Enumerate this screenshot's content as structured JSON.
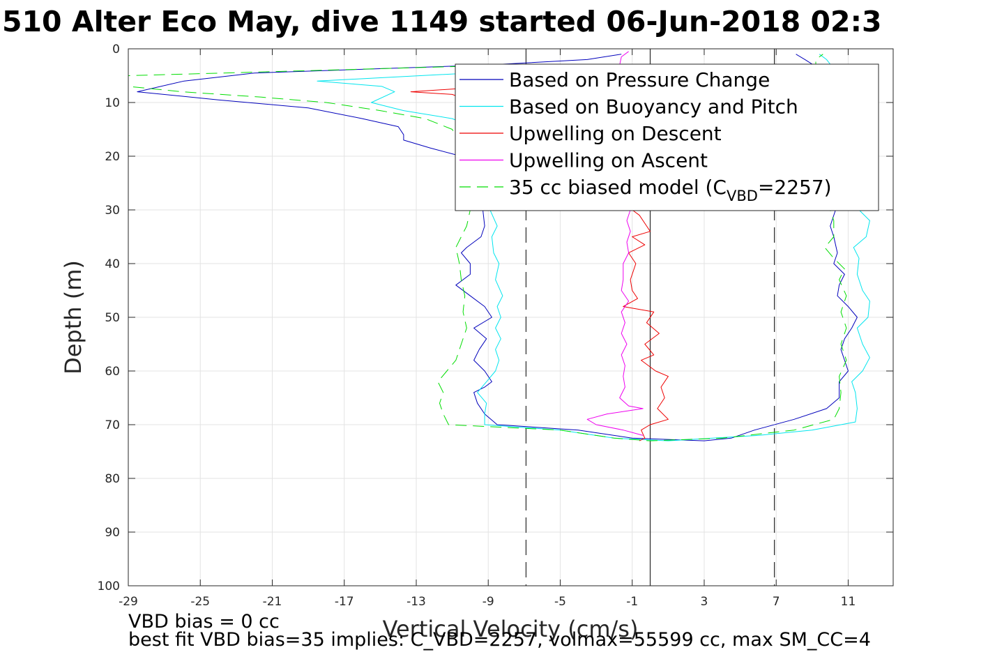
{
  "title": "510 Alter Eco May, dive 1149 started 06-Jun-2018 02:3",
  "notes": {
    "line1": "VBD bias = 0 cc",
    "line2": "best fit VBD bias=35 implies: C_VBD=2257, volmax=55599 cc, max SM_CC=4"
  },
  "colors": {
    "pressure": "#0000bb",
    "buoyancy": "#00e5ee",
    "descent": "#ee0000",
    "ascent": "#ee00ee",
    "model": "#00dd00",
    "grid": "#e3e3e3",
    "axis": "#262626"
  },
  "chart_data": {
    "type": "line",
    "title": "510 Alter Eco May, dive 1149 started 06-Jun-2018 02:3",
    "xlabel": "Vertical Velocity (cm/s)",
    "ylabel": "Depth (m)",
    "xlim": [
      -29,
      13.5
    ],
    "ylim": [
      0,
      100
    ],
    "y_reversed": true,
    "grid": true,
    "legend_placement": "top-right",
    "x_ticks": [
      "-29",
      "-25",
      "-21",
      "-17",
      "-13",
      "-9",
      "-5",
      "-1",
      "3",
      "7",
      "11"
    ],
    "y_ticks": [
      "0",
      "10",
      "20",
      "30",
      "40",
      "50",
      "60",
      "70",
      "80",
      "90",
      "100"
    ],
    "reference_lines": [
      {
        "x": -6.9,
        "style": "dashed"
      },
      {
        "x": 0.0,
        "style": "solid"
      },
      {
        "x": 6.9,
        "style": "dashed"
      }
    ],
    "legend": [
      {
        "key": "pressure",
        "label": "Based on Pressure Change",
        "style": "solid"
      },
      {
        "key": "buoyancy",
        "label": "Based on Buoyancy and Pitch",
        "style": "solid"
      },
      {
        "key": "descent",
        "label": "Upwelling on Descent",
        "style": "solid"
      },
      {
        "key": "ascent",
        "label": "Upwelling on Ascent",
        "style": "solid"
      },
      {
        "key": "model",
        "label": "35 cc biased model (C",
        "sub": "VBD",
        "suffix": "=2257)",
        "style": "dashed"
      }
    ],
    "series": [
      {
        "key": "pressure",
        "points": [
          [
            -1.6,
            1
          ],
          [
            -3.5,
            2
          ],
          [
            -9,
            3
          ],
          [
            -22,
            4.5
          ],
          [
            -25.9,
            6
          ],
          [
            -28.5,
            8
          ],
          [
            -24,
            9.5
          ],
          [
            -19,
            11
          ],
          [
            -16,
            13
          ],
          [
            -14,
            14.5
          ],
          [
            -13.7,
            16
          ],
          [
            -13.7,
            17
          ],
          [
            -12.2,
            18.5
          ],
          [
            -10.5,
            20
          ],
          [
            -10,
            22
          ],
          [
            -10.5,
            25
          ],
          [
            -9.5,
            28
          ],
          [
            -9.3,
            30
          ],
          [
            -9.2,
            33
          ],
          [
            -9.4,
            35
          ],
          [
            -10.2,
            37
          ],
          [
            -10.5,
            38
          ],
          [
            -10,
            40
          ],
          [
            -10,
            42
          ],
          [
            -10.8,
            44
          ],
          [
            -10,
            46
          ],
          [
            -9.2,
            48
          ],
          [
            -8.8,
            50
          ],
          [
            -9.8,
            52
          ],
          [
            -9.1,
            54
          ],
          [
            -9.5,
            56
          ],
          [
            -9.8,
            58
          ],
          [
            -9.2,
            60
          ],
          [
            -8.8,
            62
          ],
          [
            -9.2,
            63
          ],
          [
            -9.8,
            64
          ],
          [
            -9.6,
            66
          ],
          [
            -9.2,
            68
          ],
          [
            -8.5,
            70
          ],
          [
            -4,
            71
          ],
          [
            -1,
            72.5
          ],
          [
            3,
            73
          ],
          [
            4.5,
            72.5
          ],
          [
            5.8,
            71
          ],
          [
            8,
            69
          ],
          [
            9.8,
            67
          ],
          [
            10.5,
            65
          ],
          [
            10.5,
            62
          ],
          [
            11,
            60
          ],
          [
            10.8,
            58
          ],
          [
            10.6,
            56
          ],
          [
            10.8,
            54
          ],
          [
            11.2,
            52
          ],
          [
            11.5,
            50
          ],
          [
            11,
            48
          ],
          [
            10.4,
            46
          ],
          [
            10.5,
            44
          ],
          [
            10.8,
            42
          ],
          [
            10.2,
            40
          ],
          [
            10.4,
            38
          ],
          [
            10.2,
            35
          ],
          [
            10,
            33
          ],
          [
            10.3,
            30
          ],
          [
            10.3,
            25
          ],
          [
            10.2,
            20
          ],
          [
            10.8,
            15
          ],
          [
            10.5,
            10
          ],
          [
            10,
            5
          ],
          [
            8.6,
            2
          ],
          [
            8.1,
            1
          ]
        ]
      },
      {
        "key": "buoyancy",
        "points": [
          [
            -7,
            4
          ],
          [
            -18.5,
            6
          ],
          [
            -14.9,
            7
          ],
          [
            -14.2,
            8
          ],
          [
            -15.5,
            10
          ],
          [
            -13.7,
            11.5
          ],
          [
            -11,
            13
          ],
          [
            -9.5,
            15
          ],
          [
            -9.5,
            18
          ],
          [
            -9.2,
            22
          ],
          [
            -9,
            26
          ],
          [
            -8.9,
            30
          ],
          [
            -8.5,
            33
          ],
          [
            -8.8,
            35
          ],
          [
            -8.7,
            38
          ],
          [
            -8.4,
            40
          ],
          [
            -8.6,
            43
          ],
          [
            -8.2,
            46
          ],
          [
            -8.5,
            48
          ],
          [
            -8.3,
            50
          ],
          [
            -8.6,
            52
          ],
          [
            -8.3,
            54
          ],
          [
            -8.6,
            56
          ],
          [
            -8.4,
            58
          ],
          [
            -8.6,
            60
          ],
          [
            -9.1,
            62
          ],
          [
            -9.6,
            64
          ],
          [
            -9.1,
            66
          ],
          [
            -9.2,
            68
          ],
          [
            -9.2,
            70
          ],
          [
            -5,
            71
          ],
          [
            -2,
            72.5
          ],
          [
            1,
            73
          ],
          [
            6,
            72
          ],
          [
            9,
            71
          ],
          [
            11.4,
            69.5
          ],
          [
            11.5,
            67
          ],
          [
            11.4,
            64
          ],
          [
            11.2,
            62
          ],
          [
            11.8,
            60
          ],
          [
            12.2,
            57.5
          ],
          [
            11.8,
            55
          ],
          [
            11.5,
            52
          ],
          [
            12.1,
            50
          ],
          [
            12.2,
            47
          ],
          [
            11.8,
            45
          ],
          [
            11.5,
            42
          ],
          [
            11.6,
            39
          ],
          [
            11.3,
            37
          ],
          [
            12,
            35
          ],
          [
            12.2,
            32
          ],
          [
            11.6,
            30
          ],
          [
            11.8,
            25
          ],
          [
            11.5,
            20
          ],
          [
            11.2,
            15
          ],
          [
            10.8,
            10
          ],
          [
            10.5,
            5
          ],
          [
            9.8,
            2
          ],
          [
            9.4,
            1
          ]
        ]
      },
      {
        "key": "descent",
        "points": [
          [
            -6.5,
            6.5
          ],
          [
            -13.3,
            8
          ],
          [
            -11,
            8.5
          ],
          [
            -9.8,
            10
          ],
          [
            -7,
            11.5
          ],
          [
            -1,
            30
          ],
          [
            -0.6,
            31
          ],
          [
            -0.2,
            33
          ],
          [
            0,
            34
          ],
          [
            -1,
            35
          ],
          [
            -0.3,
            36.5
          ],
          [
            -1.2,
            38
          ],
          [
            -0.8,
            40
          ],
          [
            -1.1,
            43
          ],
          [
            -1,
            45
          ],
          [
            -0.7,
            46.5
          ],
          [
            -1.5,
            48
          ],
          [
            0.2,
            49
          ],
          [
            -0.2,
            51
          ],
          [
            0.5,
            53
          ],
          [
            -0.3,
            55
          ],
          [
            0.2,
            57
          ],
          [
            -0.5,
            58
          ],
          [
            0.3,
            60
          ],
          [
            1,
            61
          ],
          [
            0.6,
            63
          ],
          [
            0.8,
            65
          ],
          [
            0.4,
            67
          ],
          [
            1,
            69
          ],
          [
            0,
            70
          ],
          [
            -0.5,
            71
          ],
          [
            -0.3,
            72.5
          ],
          [
            -0.6,
            73
          ]
        ]
      },
      {
        "key": "ascent",
        "points": [
          [
            -1.2,
            0.5
          ],
          [
            -1.6,
            1.5
          ],
          [
            -1.7,
            3
          ],
          [
            -1.1,
            30
          ],
          [
            -1.3,
            32
          ],
          [
            -1.1,
            34
          ],
          [
            -1.3,
            36
          ],
          [
            -1.2,
            38
          ],
          [
            -1.5,
            40
          ],
          [
            -1.5,
            43
          ],
          [
            -1.6,
            45
          ],
          [
            -1.2,
            47
          ],
          [
            -1.6,
            49
          ],
          [
            -1.4,
            51
          ],
          [
            -1.6,
            53
          ],
          [
            -1.3,
            55
          ],
          [
            -1.6,
            57
          ],
          [
            -1.4,
            59
          ],
          [
            -1.5,
            61
          ],
          [
            -1.4,
            63
          ],
          [
            -1.7,
            65
          ],
          [
            -1.2,
            66.5
          ],
          [
            -0.4,
            67
          ],
          [
            -2.4,
            68
          ],
          [
            -3.5,
            69
          ],
          [
            -3,
            70
          ],
          [
            -1.5,
            71
          ],
          [
            -0.4,
            72
          ]
        ]
      },
      {
        "key": "model",
        "points": [
          [
            -7.6,
            3
          ],
          [
            -29,
            5
          ],
          [
            -29,
            7
          ],
          [
            -26,
            8
          ],
          [
            -21.6,
            9
          ],
          [
            -18,
            10
          ],
          [
            -15,
            11.5
          ],
          [
            -12.5,
            13
          ],
          [
            -11,
            15
          ],
          [
            -10.5,
            18
          ],
          [
            -10.2,
            22
          ],
          [
            -10,
            26
          ],
          [
            -10,
            30
          ],
          [
            -10.2,
            33
          ],
          [
            -10.5,
            35
          ],
          [
            -10.8,
            37
          ],
          [
            -10.6,
            40
          ],
          [
            -10.5,
            43
          ],
          [
            -10.3,
            46
          ],
          [
            -10.4,
            49
          ],
          [
            -10.2,
            52
          ],
          [
            -10.5,
            55
          ],
          [
            -10.8,
            58
          ],
          [
            -11.3,
            60
          ],
          [
            -11.8,
            62
          ],
          [
            -11.5,
            64
          ],
          [
            -11.7,
            66
          ],
          [
            -11.5,
            68
          ],
          [
            -11.2,
            70
          ],
          [
            -5,
            71
          ],
          [
            -2,
            72.5
          ],
          [
            0,
            73
          ],
          [
            4,
            72.5
          ],
          [
            8,
            71
          ],
          [
            10.2,
            69
          ],
          [
            10.5,
            67
          ],
          [
            10.6,
            64
          ],
          [
            10.5,
            61
          ],
          [
            10.9,
            58
          ],
          [
            10.6,
            55
          ],
          [
            10.9,
            52
          ],
          [
            10.6,
            49
          ],
          [
            10.9,
            46
          ],
          [
            10.5,
            43
          ],
          [
            10.8,
            41
          ],
          [
            10.2,
            39
          ],
          [
            9.7,
            37
          ],
          [
            10.2,
            35
          ],
          [
            10.2,
            32
          ],
          [
            10,
            30
          ],
          [
            10,
            25
          ],
          [
            9.8,
            20
          ],
          [
            9.7,
            15
          ],
          [
            9.5,
            10
          ],
          [
            9.2,
            5
          ],
          [
            9.2,
            2
          ],
          [
            9.6,
            1
          ]
        ]
      }
    ]
  }
}
